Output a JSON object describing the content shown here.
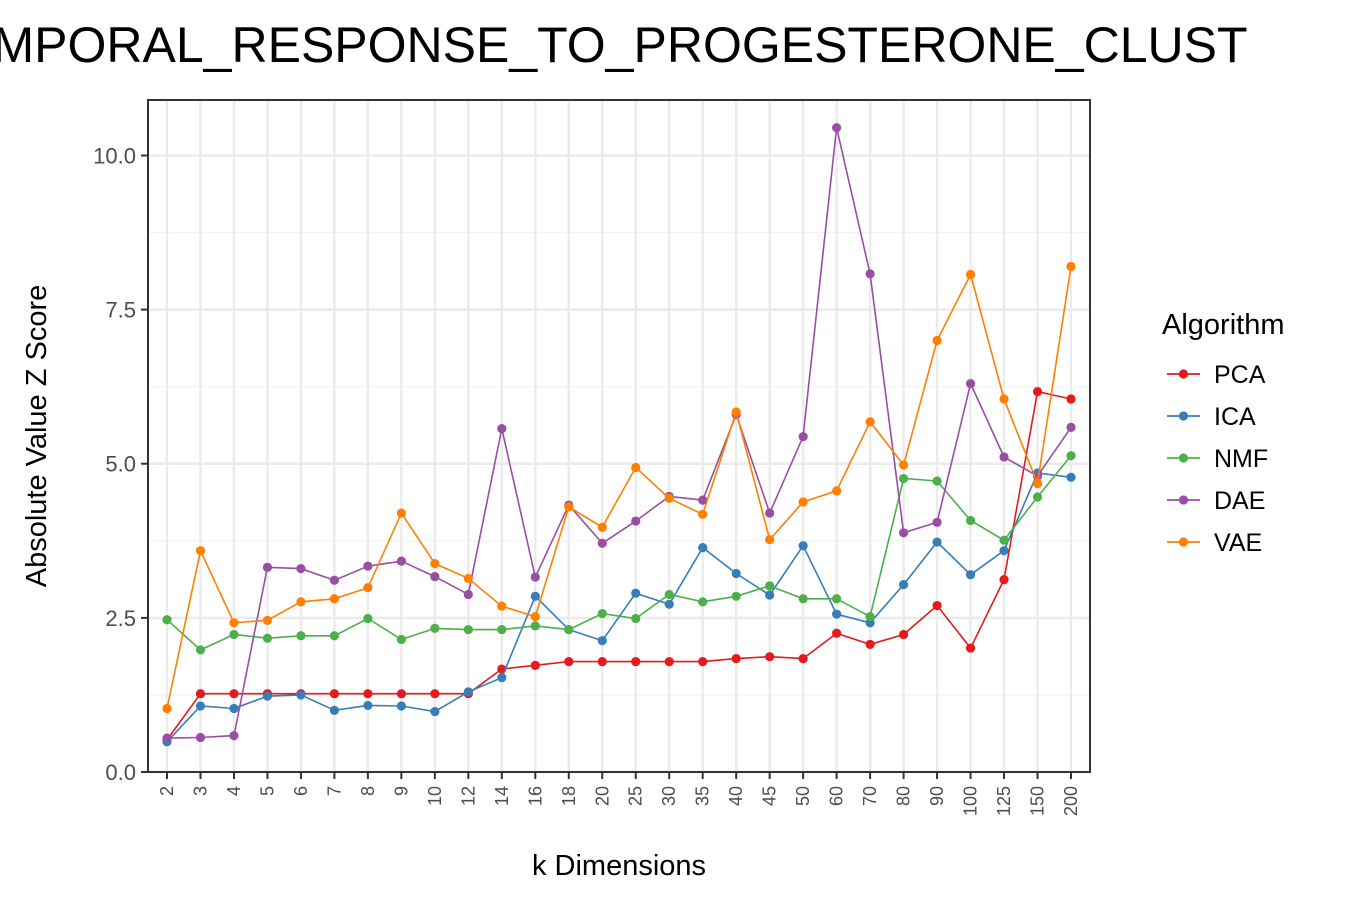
{
  "chart_data": {
    "type": "line",
    "title": "MPORAL_RESPONSE_TO_PROGESTERONE_CLUST",
    "xlabel": "k Dimensions",
    "ylabel": "Absolute Value Z Score",
    "categories": [
      "2",
      "3",
      "4",
      "5",
      "6",
      "7",
      "8",
      "9",
      "10",
      "12",
      "14",
      "16",
      "18",
      "20",
      "25",
      "30",
      "35",
      "40",
      "45",
      "50",
      "60",
      "70",
      "80",
      "90",
      "100",
      "125",
      "150",
      "200"
    ],
    "ylim": [
      0,
      10.9
    ],
    "yticks": [
      0,
      2.5,
      5,
      7.5,
      10
    ],
    "ytick_labels": [
      "0.0",
      "2.5",
      "5.0",
      "7.5",
      "10.0"
    ],
    "grid": true,
    "legend": {
      "title": "Algorithm",
      "position": "right"
    },
    "series": [
      {
        "name": "PCA",
        "color": "#e41a1c",
        "values": [
          0.52,
          1.27,
          1.27,
          1.27,
          1.27,
          1.27,
          1.27,
          1.27,
          1.27,
          1.27,
          1.67,
          1.73,
          1.79,
          1.79,
          1.79,
          1.79,
          1.79,
          1.84,
          1.87,
          1.84,
          2.25,
          2.07,
          2.23,
          2.7,
          2.01,
          3.12,
          6.17,
          6.05
        ]
      },
      {
        "name": "ICA",
        "color": "#377eb8",
        "values": [
          0.49,
          1.07,
          1.03,
          1.23,
          1.25,
          1.0,
          1.08,
          1.07,
          0.98,
          1.3,
          1.53,
          2.85,
          2.31,
          2.13,
          2.9,
          2.72,
          3.64,
          3.22,
          2.87,
          3.67,
          2.56,
          2.42,
          3.04,
          3.73,
          3.2,
          3.59,
          4.85,
          4.78
        ]
      },
      {
        "name": "NMF",
        "color": "#4daf4a",
        "values": [
          2.47,
          1.98,
          2.23,
          2.17,
          2.21,
          2.21,
          2.49,
          2.15,
          2.33,
          2.31,
          2.31,
          2.37,
          2.31,
          2.57,
          2.49,
          2.88,
          2.76,
          2.85,
          3.02,
          2.81,
          2.81,
          2.52,
          4.76,
          4.72,
          4.08,
          3.76,
          4.46,
          5.13
        ]
      },
      {
        "name": "DAE",
        "color": "#984ea3",
        "values": [
          0.55,
          0.56,
          0.59,
          3.32,
          3.3,
          3.11,
          3.34,
          3.42,
          3.17,
          2.88,
          5.57,
          3.16,
          4.33,
          3.71,
          4.07,
          4.47,
          4.41,
          5.8,
          4.2,
          5.44,
          10.45,
          8.08,
          3.88,
          4.05,
          6.3,
          5.11,
          4.8,
          5.59
        ]
      },
      {
        "name": "VAE",
        "color": "#ff7f00",
        "values": [
          1.03,
          3.59,
          2.42,
          2.46,
          2.76,
          2.81,
          2.99,
          4.2,
          3.38,
          3.14,
          2.69,
          2.52,
          4.3,
          3.97,
          4.94,
          4.44,
          4.18,
          5.84,
          3.77,
          4.38,
          4.56,
          5.68,
          4.98,
          7.0,
          8.07,
          6.05,
          4.68,
          8.2
        ]
      }
    ]
  }
}
